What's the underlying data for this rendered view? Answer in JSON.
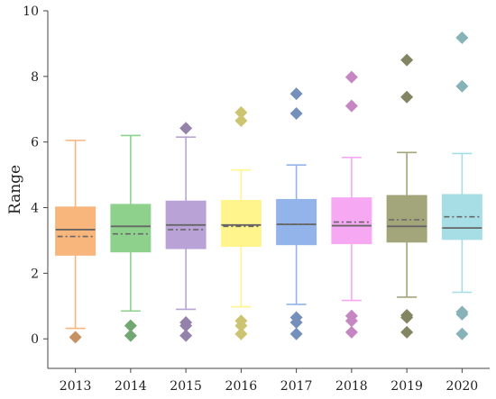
{
  "chart_data": {
    "type": "box",
    "title": "",
    "xlabel": "",
    "ylabel": "Range",
    "ylim": [
      -0.9,
      10
    ],
    "yticks": [
      0,
      2,
      4,
      6,
      8,
      10
    ],
    "categories": [
      "2013",
      "2014",
      "2015",
      "2016",
      "2017",
      "2018",
      "2019",
      "2020"
    ],
    "colors": [
      "#F8B57C",
      "#8DD18D",
      "#B9A3D6",
      "#FFF58C",
      "#92B4EA",
      "#F6A8F3",
      "#A3A57A",
      "#A7DEE6"
    ],
    "boxes": [
      {
        "year": "2013",
        "whisker_low": 0.32,
        "q1": 2.55,
        "median": 3.33,
        "mean": 3.12,
        "q3": 4.02,
        "whisker_high": 6.05,
        "outliers": [
          0.05
        ]
      },
      {
        "year": "2014",
        "whisker_low": 0.85,
        "q1": 2.65,
        "median": 3.43,
        "mean": 3.2,
        "q3": 4.1,
        "whisker_high": 6.2,
        "outliers": [
          0.1,
          0.4
        ]
      },
      {
        "year": "2015",
        "whisker_low": 0.9,
        "q1": 2.75,
        "median": 3.47,
        "mean": 3.33,
        "q3": 4.2,
        "whisker_high": 6.15,
        "outliers": [
          0.1,
          0.4,
          0.5,
          6.42
        ]
      },
      {
        "year": "2016",
        "whisker_low": 0.98,
        "q1": 2.82,
        "median": 3.47,
        "mean": 3.43,
        "q3": 4.22,
        "whisker_high": 5.15,
        "outliers": [
          0.15,
          0.4,
          0.55,
          6.65,
          6.9
        ]
      },
      {
        "year": "2017",
        "whisker_low": 1.05,
        "q1": 2.87,
        "median": 3.49,
        "mean": 3.49,
        "q3": 4.25,
        "whisker_high": 5.3,
        "outliers": [
          0.15,
          0.5,
          0.65,
          6.87,
          7.47
        ]
      },
      {
        "year": "2018",
        "whisker_low": 1.17,
        "q1": 2.9,
        "median": 3.45,
        "mean": 3.56,
        "q3": 4.3,
        "whisker_high": 5.53,
        "outliers": [
          0.2,
          0.55,
          0.7,
          7.1,
          7.98
        ]
      },
      {
        "year": "2019",
        "whisker_low": 1.27,
        "q1": 2.95,
        "median": 3.43,
        "mean": 3.63,
        "q3": 4.37,
        "whisker_high": 5.68,
        "outliers": [
          0.2,
          0.65,
          0.72,
          7.37,
          8.5
        ]
      },
      {
        "year": "2020",
        "whisker_low": 1.42,
        "q1": 3.03,
        "median": 3.38,
        "mean": 3.72,
        "q3": 4.4,
        "whisker_high": 5.65,
        "outliers": [
          0.15,
          0.75,
          0.82,
          7.7,
          9.18
        ]
      }
    ],
    "grid": false,
    "legend": "none"
  }
}
